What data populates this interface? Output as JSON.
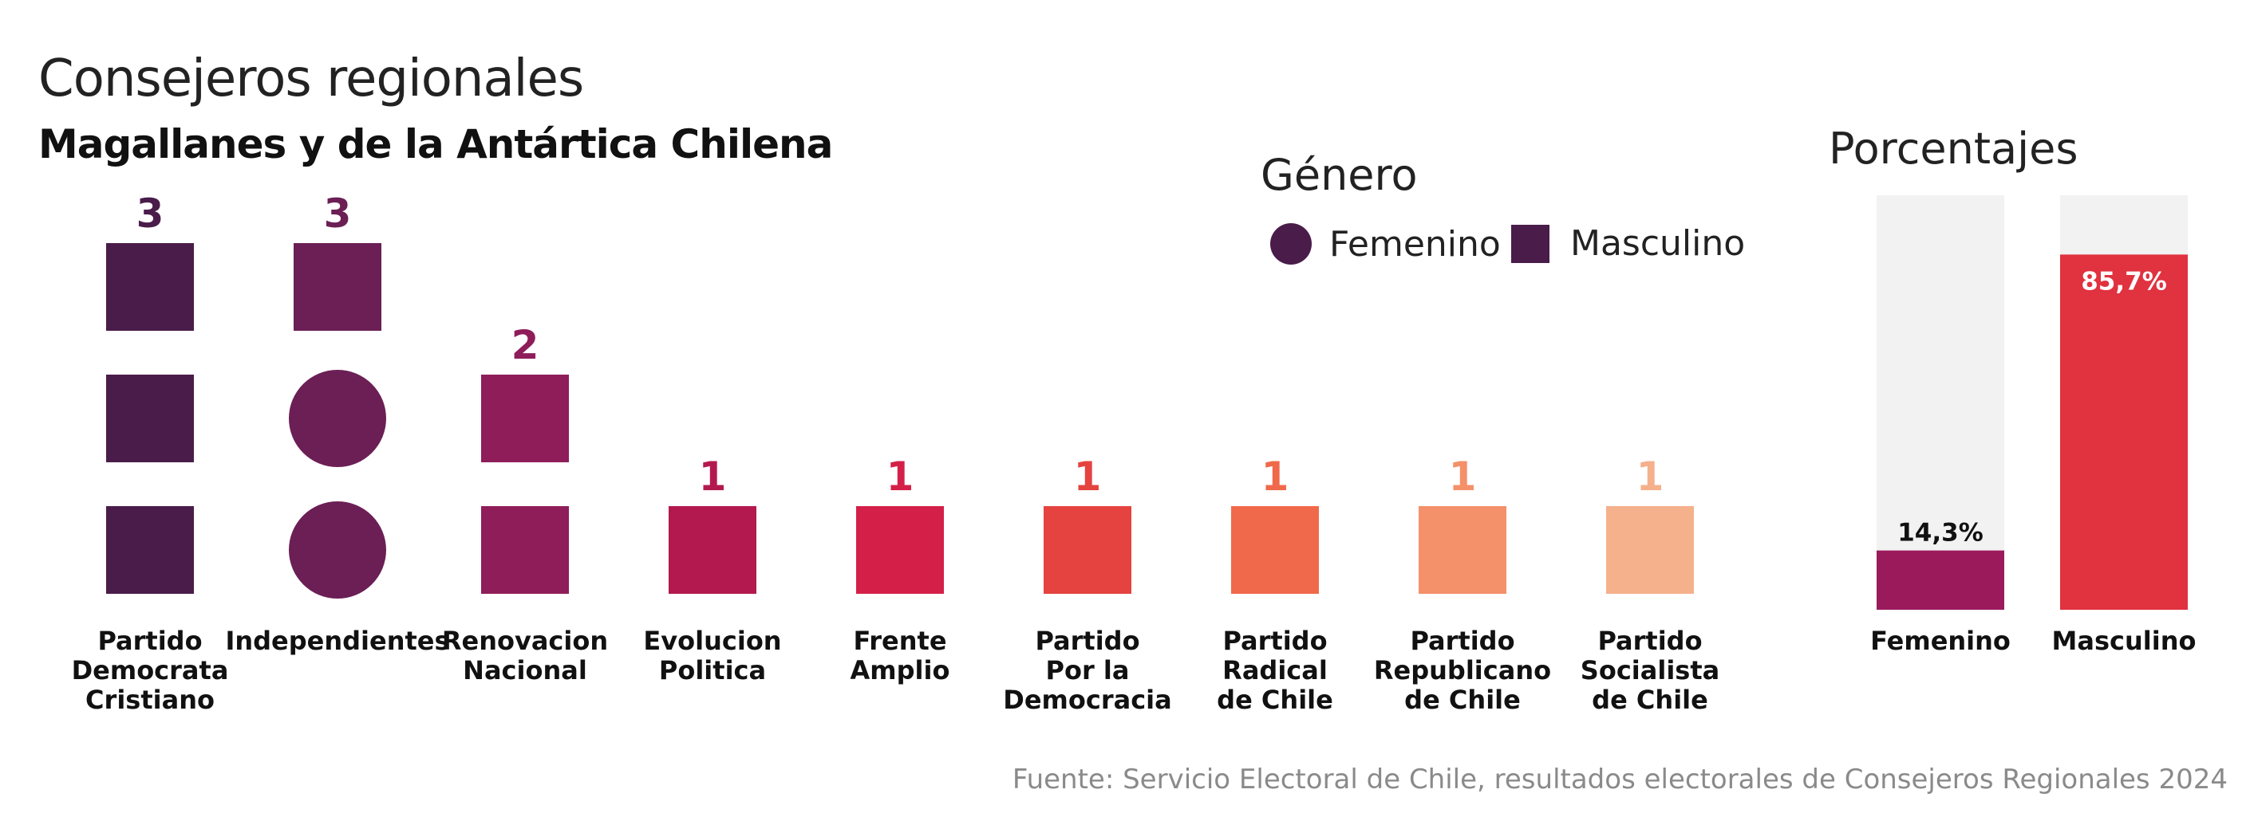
{
  "header": {
    "title": "Consejeros regionales",
    "subtitle": "Magallanes y de la Antártica Chilena"
  },
  "legend": {
    "title": "Género",
    "items": [
      {
        "label": "Femenino",
        "shape": "circle"
      },
      {
        "label": "Masculino",
        "shape": "square"
      }
    ],
    "color": "#4a1c4a"
  },
  "percent_panel": {
    "title": "Porcentajes"
  },
  "source": "Fuente: Servicio Electoral de Chile, resultados electorales de Consejeros Regionales 2024",
  "chart_data": [
    {
      "type": "bar",
      "chart": "unit-pictogram",
      "categories": [
        [
          "Partido",
          "Democrata",
          "Cristiano"
        ],
        [
          "Independientes"
        ],
        [
          "Renovacion",
          "Nacional"
        ],
        [
          "Evolucion",
          "Politica"
        ],
        [
          "Frente",
          "Amplio"
        ],
        [
          "Partido",
          "Por la",
          "Democracia"
        ],
        [
          "Partido",
          "Radical",
          "de Chile"
        ],
        [
          "Partido",
          "Republicano",
          "de Chile"
        ],
        [
          "Partido",
          "Socialista",
          "de Chile"
        ]
      ],
      "counts": [
        3,
        3,
        2,
        1,
        1,
        1,
        1,
        1,
        1
      ],
      "femenino": [
        0,
        2,
        0,
        0,
        0,
        0,
        0,
        0,
        0
      ],
      "masculino": [
        3,
        1,
        2,
        1,
        1,
        1,
        1,
        1,
        1
      ],
      "colors": [
        "#4a1c4a",
        "#6b1f55",
        "#8f1d5a",
        "#b3194f",
        "#d42048",
        "#e5433f",
        "#f0694a",
        "#f4906a",
        "#f5b08c"
      ]
    },
    {
      "type": "bar",
      "categories": [
        "Femenino",
        "Masculino"
      ],
      "values": [
        14.3,
        85.7
      ],
      "value_labels": [
        "14,3%",
        "85,7%"
      ],
      "ylim": [
        0,
        100
      ],
      "colors": [
        "#9b1a5c",
        "#e0323f"
      ],
      "background_color": "#f2f2f2"
    }
  ]
}
